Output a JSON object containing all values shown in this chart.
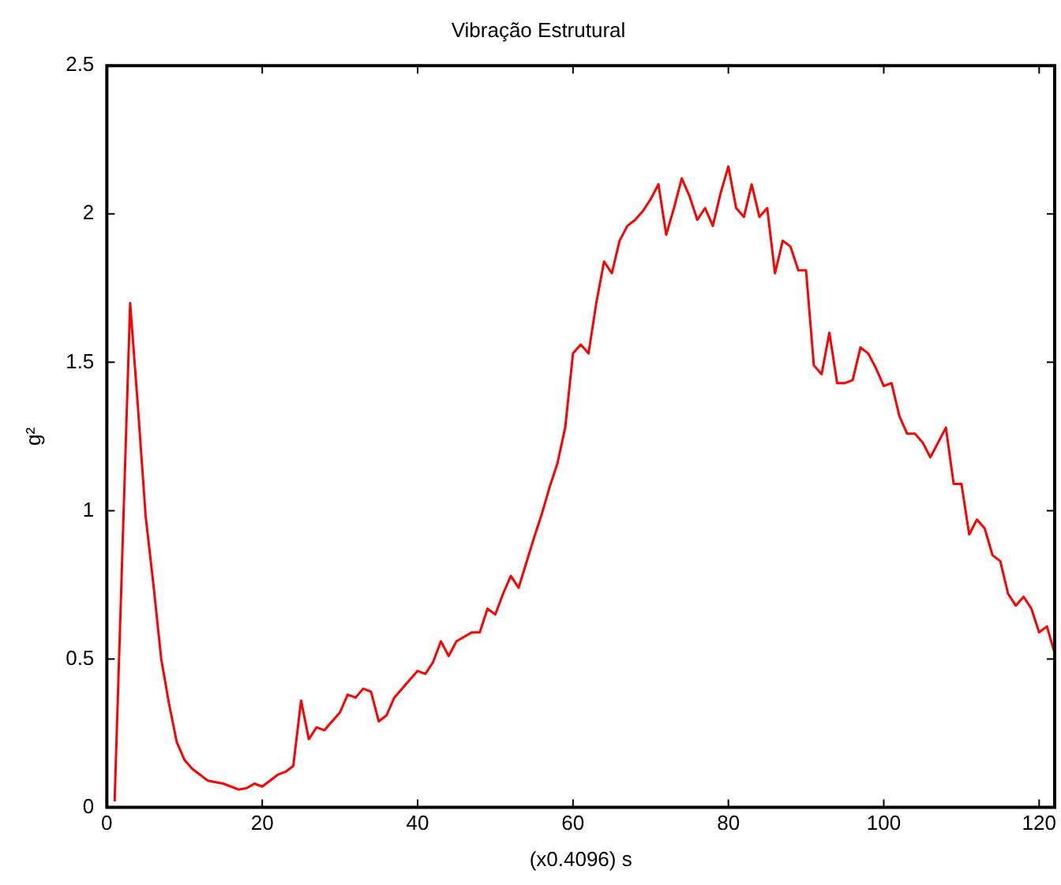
{
  "chart_data": {
    "type": "line",
    "title": "Vibração Estrutural",
    "xlabel": "(x0.4096) s",
    "ylabel": "g²",
    "x": [
      1,
      3,
      4,
      5,
      6,
      7,
      8,
      9,
      10,
      11,
      12,
      13,
      15,
      17,
      18,
      19,
      20,
      22,
      23,
      24,
      25,
      26,
      27,
      28,
      30,
      31,
      32,
      33,
      34,
      35,
      36,
      37,
      39,
      40,
      41,
      42,
      43,
      44,
      45,
      47,
      48,
      49,
      50,
      51,
      52,
      53,
      55,
      56,
      57,
      58,
      59,
      60,
      61,
      62,
      63,
      64,
      65,
      66,
      67,
      68,
      69,
      70,
      71,
      72,
      73,
      74,
      75,
      76,
      77,
      78,
      79,
      80,
      81,
      82,
      83,
      84,
      85,
      86,
      87,
      88,
      89,
      90,
      91,
      92,
      93,
      94,
      95,
      96,
      97,
      98,
      99,
      100,
      101,
      102,
      103,
      104,
      105,
      106,
      108,
      109,
      110,
      111,
      112,
      113,
      114,
      115,
      116,
      117,
      118,
      119,
      120,
      121,
      122
    ],
    "series": [
      {
        "color": "#ff0000",
        "values": [
          0.02,
          1.7,
          1.35,
          0.98,
          0.75,
          0.5,
          0.35,
          0.22,
          0.16,
          0.13,
          0.11,
          0.09,
          0.08,
          0.06,
          0.065,
          0.08,
          0.07,
          0.11,
          0.12,
          0.14,
          0.36,
          0.23,
          0.27,
          0.26,
          0.32,
          0.38,
          0.37,
          0.4,
          0.39,
          0.29,
          0.31,
          0.37,
          0.43,
          0.46,
          0.45,
          0.49,
          0.56,
          0.51,
          0.56,
          0.59,
          0.59,
          0.67,
          0.65,
          0.72,
          0.78,
          0.74,
          0.91,
          0.99,
          1.08,
          1.16,
          1.28,
          1.53,
          1.56,
          1.53,
          1.7,
          1.84,
          1.8,
          1.91,
          1.96,
          1.98,
          2.01,
          2.05,
          2.1,
          1.93,
          2.02,
          2.12,
          2.06,
          1.98,
          2.02,
          1.96,
          2.07,
          2.16,
          2.02,
          1.99,
          2.1,
          1.99,
          2.02,
          1.8,
          1.91,
          1.89,
          1.81,
          1.81,
          1.49,
          1.46,
          1.6,
          1.43,
          1.43,
          1.44,
          1.55,
          1.53,
          1.48,
          1.42,
          1.43,
          1.32,
          1.26,
          1.26,
          1.23,
          1.18,
          1.28,
          1.09,
          1.09,
          0.92,
          0.97,
          0.94,
          0.85,
          0.83,
          0.72,
          0.68,
          0.71,
          0.67,
          0.59,
          0.61,
          0.52
        ]
      }
    ],
    "xlim": [
      0,
      122
    ],
    "xticks": [
      0,
      20,
      40,
      60,
      80,
      100,
      120
    ],
    "ylim": [
      0,
      2.5
    ],
    "yticks": [
      0,
      0.5,
      1,
      1.5,
      2,
      2.5
    ],
    "grid": false,
    "legend": false,
    "marker": "none",
    "line_style": "solid"
  }
}
